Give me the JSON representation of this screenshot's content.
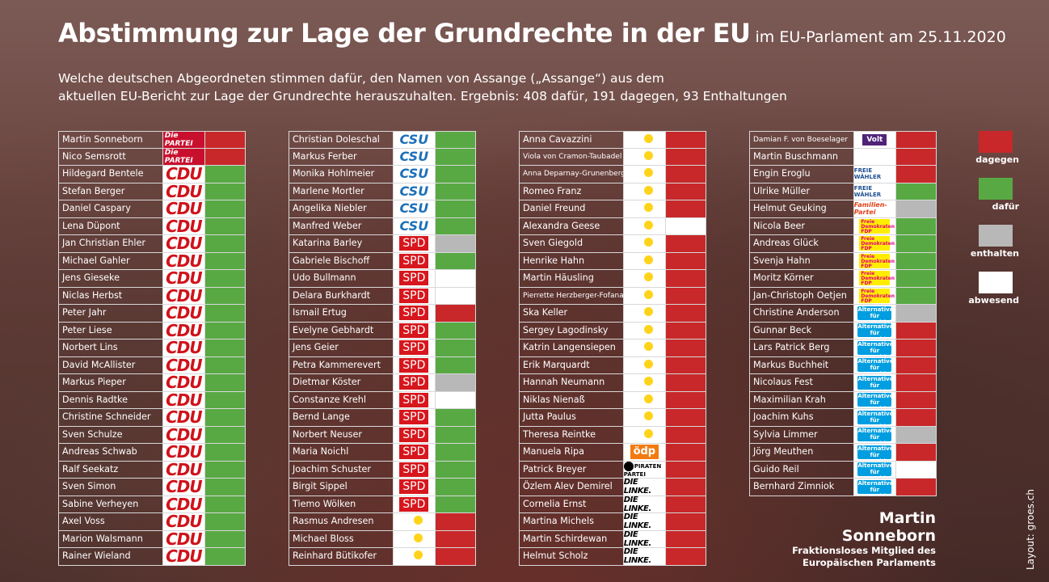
{
  "title": "Abstimmung zur Lage der Grundrechte in der EU",
  "title_sub": "im EU-Parlament am 25.11.2020",
  "subtitle_line1": "Welche deutschen Abgeordneten stimmen dafür, den Namen von Assange („Assange“) aus dem",
  "subtitle_line2": "aktuellen EU-Bericht zur Lage der Grundrechte herauszuhalten. Ergebnis: 408 dafür, 191 dagegen, 93 Enthaltungen",
  "colors": {
    "dagegen": "#c8282a",
    "dafur": "#58a944",
    "enthalten": "#b8b8b8",
    "abwesend": "#ffffff"
  },
  "legend": [
    {
      "key": "dagegen",
      "label": "dagegen"
    },
    {
      "key": "dafur",
      "label": "dafür"
    },
    {
      "key": "enthalten",
      "label": "enthalten"
    },
    {
      "key": "abwesend",
      "label": "abwesend"
    }
  ],
  "logo_text": {
    "cdu": "CDU",
    "csu": "CSU",
    "spd": "SPD",
    "partei": "Die PARTEI",
    "green": "BÜNDNIS 90 DIE GRÜNEN",
    "fw": "FREIE WÄHLER",
    "fam": "Familien-Partei",
    "fdp": "Freie Demokraten FDP",
    "afd": "Alternative für Deutschland",
    "linke": "DIE LINKE.",
    "oedp": "ödp",
    "pirat": "PIRATEN PARTEI",
    "volt": "Volt"
  },
  "columns": [
    [
      {
        "name": "Martin Sonneborn",
        "party": "partei",
        "vote": "dagegen"
      },
      {
        "name": "Nico Semsrott",
        "party": "partei",
        "vote": "dagegen"
      },
      {
        "name": "Hildegard Bentele",
        "party": "cdu",
        "vote": "dafur"
      },
      {
        "name": "Stefan Berger",
        "party": "cdu",
        "vote": "dafur"
      },
      {
        "name": "Daniel Caspary",
        "party": "cdu",
        "vote": "dafur"
      },
      {
        "name": "Lena Düpont",
        "party": "cdu",
        "vote": "dafur"
      },
      {
        "name": "Jan Christian Ehler",
        "party": "cdu",
        "vote": "dafur"
      },
      {
        "name": "Michael Gahler",
        "party": "cdu",
        "vote": "dafur"
      },
      {
        "name": "Jens Gieseke",
        "party": "cdu",
        "vote": "dafur"
      },
      {
        "name": "Niclas Herbst",
        "party": "cdu",
        "vote": "dafur"
      },
      {
        "name": "Peter Jahr",
        "party": "cdu",
        "vote": "dafur"
      },
      {
        "name": "Peter Liese",
        "party": "cdu",
        "vote": "dafur"
      },
      {
        "name": "Norbert Lins",
        "party": "cdu",
        "vote": "dafur"
      },
      {
        "name": "David McAllister",
        "party": "cdu",
        "vote": "dafur"
      },
      {
        "name": "Markus Pieper",
        "party": "cdu",
        "vote": "dafur"
      },
      {
        "name": "Dennis Radtke",
        "party": "cdu",
        "vote": "dafur"
      },
      {
        "name": "Christine Schneider",
        "party": "cdu",
        "vote": "dafur"
      },
      {
        "name": "Sven Schulze",
        "party": "cdu",
        "vote": "dafur"
      },
      {
        "name": "Andreas Schwab",
        "party": "cdu",
        "vote": "dafur"
      },
      {
        "name": "Ralf Seekatz",
        "party": "cdu",
        "vote": "dafur"
      },
      {
        "name": "Sven Simon",
        "party": "cdu",
        "vote": "dafur"
      },
      {
        "name": "Sabine Verheyen",
        "party": "cdu",
        "vote": "dafur"
      },
      {
        "name": "Axel Voss",
        "party": "cdu",
        "vote": "dafur"
      },
      {
        "name": "Marion Walsmann",
        "party": "cdu",
        "vote": "dafur"
      },
      {
        "name": "Rainer Wieland",
        "party": "cdu",
        "vote": "dafur"
      }
    ],
    [
      {
        "name": "Christian Doleschal",
        "party": "csu",
        "vote": "dafur"
      },
      {
        "name": "Markus Ferber",
        "party": "csu",
        "vote": "dafur"
      },
      {
        "name": "Monika Hohlmeier",
        "party": "csu",
        "vote": "dafur"
      },
      {
        "name": "Marlene Mortler",
        "party": "csu",
        "vote": "dafur"
      },
      {
        "name": "Angelika Niebler",
        "party": "csu",
        "vote": "dafur"
      },
      {
        "name": "Manfred Weber",
        "party": "csu",
        "vote": "dafur"
      },
      {
        "name": "Katarina Barley",
        "party": "spd",
        "vote": "enthalten"
      },
      {
        "name": "Gabriele Bischoff",
        "party": "spd",
        "vote": "dafur"
      },
      {
        "name": "Udo Bullmann",
        "party": "spd",
        "vote": "abwesend"
      },
      {
        "name": "Delara Burkhardt",
        "party": "spd",
        "vote": "abwesend"
      },
      {
        "name": "Ismail Ertug",
        "party": "spd",
        "vote": "dagegen"
      },
      {
        "name": "Evelyne Gebhardt",
        "party": "spd",
        "vote": "dafur"
      },
      {
        "name": "Jens Geier",
        "party": "spd",
        "vote": "dafur"
      },
      {
        "name": "Petra Kammerevert",
        "party": "spd",
        "vote": "dafur"
      },
      {
        "name": "Dietmar Köster",
        "party": "spd",
        "vote": "enthalten"
      },
      {
        "name": "Constanze Krehl",
        "party": "spd",
        "vote": "abwesend"
      },
      {
        "name": "Bernd Lange",
        "party": "spd",
        "vote": "dafur"
      },
      {
        "name": "Norbert Neuser",
        "party": "spd",
        "vote": "dafur"
      },
      {
        "name": "Maria Noichl",
        "party": "spd",
        "vote": "dafur"
      },
      {
        "name": "Joachim Schuster",
        "party": "spd",
        "vote": "dafur"
      },
      {
        "name": "Birgit Sippel",
        "party": "spd",
        "vote": "dafur"
      },
      {
        "name": "Tiemo Wölken",
        "party": "spd",
        "vote": "dafur"
      },
      {
        "name": "Rasmus Andresen",
        "party": "green",
        "vote": "dagegen"
      },
      {
        "name": "Michael Bloss",
        "party": "green",
        "vote": "dagegen"
      },
      {
        "name": "Reinhard Bütikofer",
        "party": "green",
        "vote": "dagegen"
      }
    ],
    [
      {
        "name": "Anna Cavazzini",
        "party": "green",
        "vote": "dagegen"
      },
      {
        "name": "Viola von Cramon-Taubadel",
        "party": "green",
        "vote": "dagegen",
        "small": true
      },
      {
        "name": "Anna Deparnay-Grunenberg",
        "party": "green",
        "vote": "dagegen",
        "small": true
      },
      {
        "name": "Romeo Franz",
        "party": "green",
        "vote": "dagegen"
      },
      {
        "name": "Daniel Freund",
        "party": "green",
        "vote": "dagegen"
      },
      {
        "name": "Alexandra Geese",
        "party": "green",
        "vote": "abwesend"
      },
      {
        "name": "Sven Giegold",
        "party": "green",
        "vote": "dagegen"
      },
      {
        "name": "Henrike Hahn",
        "party": "green",
        "vote": "dagegen"
      },
      {
        "name": "Martin Häusling",
        "party": "green",
        "vote": "dagegen"
      },
      {
        "name": "Pierrette Herzberger-Fofana",
        "party": "green",
        "vote": "dagegen",
        "small": true
      },
      {
        "name": "Ska Keller",
        "party": "green",
        "vote": "dagegen"
      },
      {
        "name": "Sergey Lagodinsky",
        "party": "green",
        "vote": "dagegen"
      },
      {
        "name": "Katrin Langensiepen",
        "party": "green",
        "vote": "dagegen"
      },
      {
        "name": "Erik Marquardt",
        "party": "green",
        "vote": "dagegen"
      },
      {
        "name": "Hannah Neumann",
        "party": "green",
        "vote": "dagegen"
      },
      {
        "name": "Niklas Nienaß",
        "party": "green",
        "vote": "dagegen"
      },
      {
        "name": "Jutta Paulus",
        "party": "green",
        "vote": "dagegen"
      },
      {
        "name": "Theresa Reintke",
        "party": "green",
        "vote": "dagegen"
      },
      {
        "name": "Manuela Ripa",
        "party": "oedp",
        "vote": "dagegen"
      },
      {
        "name": "Patrick Breyer",
        "party": "pirat",
        "vote": "dagegen"
      },
      {
        "name": "Özlem Alev Demirel",
        "party": "linke",
        "vote": "dagegen"
      },
      {
        "name": "Cornelia Ernst",
        "party": "linke",
        "vote": "dagegen"
      },
      {
        "name": "Martina Michels",
        "party": "linke",
        "vote": "dagegen"
      },
      {
        "name": "Martin Schirdewan",
        "party": "linke",
        "vote": "dagegen"
      },
      {
        "name": "Helmut Scholz",
        "party": "linke",
        "vote": "dagegen"
      }
    ],
    [
      {
        "name": "Damian F. von Boeselager",
        "party": "volt",
        "vote": "dagegen",
        "small": true
      },
      {
        "name": "Martin Buschmann",
        "party": "none",
        "vote": "dagegen"
      },
      {
        "name": "Engin Eroglu",
        "party": "fw",
        "vote": "dagegen"
      },
      {
        "name": "Ulrike Müller",
        "party": "fw",
        "vote": "dafur"
      },
      {
        "name": "Helmut Geuking",
        "party": "fam",
        "vote": "enthalten"
      },
      {
        "name": "Nicola Beer",
        "party": "fdp",
        "vote": "dafur"
      },
      {
        "name": "Andreas Glück",
        "party": "fdp",
        "vote": "dafur"
      },
      {
        "name": "Svenja Hahn",
        "party": "fdp",
        "vote": "dafur"
      },
      {
        "name": "Moritz Körner",
        "party": "fdp",
        "vote": "dafur"
      },
      {
        "name": "Jan-Christoph Oetjen",
        "party": "fdp",
        "vote": "dafur"
      },
      {
        "name": "Christine Anderson",
        "party": "afd",
        "vote": "enthalten"
      },
      {
        "name": "Gunnar Beck",
        "party": "afd",
        "vote": "dagegen"
      },
      {
        "name": "Lars Patrick Berg",
        "party": "afd",
        "vote": "dagegen"
      },
      {
        "name": "Markus Buchheit",
        "party": "afd",
        "vote": "dagegen"
      },
      {
        "name": "Nicolaus Fest",
        "party": "afd",
        "vote": "dagegen"
      },
      {
        "name": "Maximilian Krah",
        "party": "afd",
        "vote": "dagegen"
      },
      {
        "name": "Joachim Kuhs",
        "party": "afd",
        "vote": "dagegen"
      },
      {
        "name": "Sylvia Limmer",
        "party": "afd",
        "vote": "enthalten"
      },
      {
        "name": "Jörg Meuthen",
        "party": "afd",
        "vote": "dagegen"
      },
      {
        "name": "Guido Reil",
        "party": "afd",
        "vote": "abwesend"
      },
      {
        "name": "Bernhard Zimniok",
        "party": "afd",
        "vote": "dagegen"
      }
    ]
  ],
  "footer": {
    "name_line1": "Martin",
    "name_line2": "Sonneborn",
    "desc_line1": "Fraktionsloses Mitglied des",
    "desc_line2": "Europäischen Parlaments",
    "layout_credit": "Layout: groes.ch"
  }
}
